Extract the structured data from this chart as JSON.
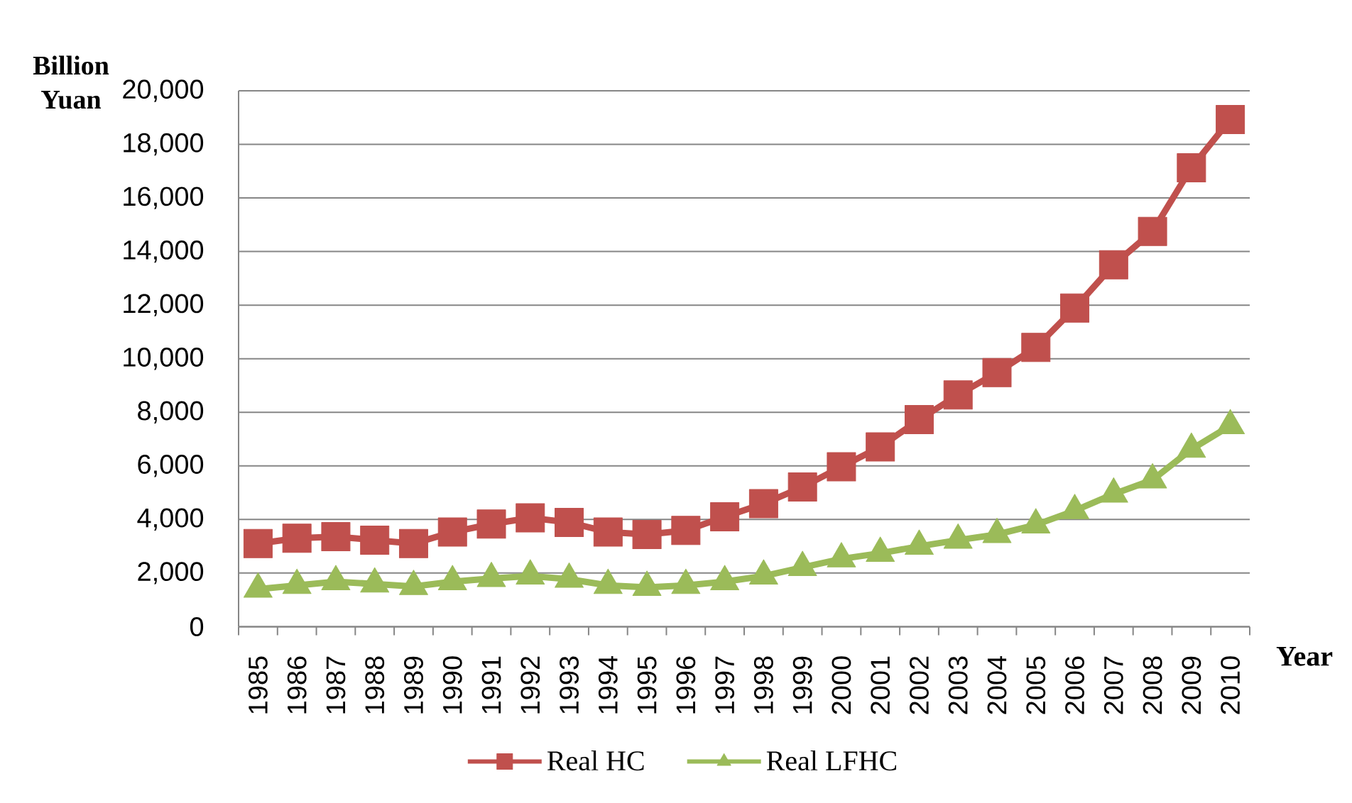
{
  "chart_data": {
    "type": "line",
    "categories": [
      "1985",
      "1986",
      "1987",
      "1988",
      "1989",
      "1990",
      "1991",
      "1992",
      "1993",
      "1994",
      "1995",
      "1996",
      "1997",
      "1998",
      "1999",
      "2000",
      "2001",
      "2002",
      "2003",
      "2004",
      "2005",
      "2006",
      "2007",
      "2008",
      "2009",
      "2010"
    ],
    "series": [
      {
        "name": "Real HC",
        "color": "#c0504d",
        "marker": "square",
        "values": [
          3100,
          3300,
          3360,
          3230,
          3100,
          3530,
          3830,
          4060,
          3890,
          3530,
          3440,
          3590,
          4100,
          4590,
          5210,
          5970,
          6710,
          7730,
          8650,
          9480,
          10420,
          11890,
          13510,
          14750,
          17130,
          18930
        ]
      },
      {
        "name": "Real LFHC",
        "color": "#9bbb59",
        "marker": "triangle",
        "values": [
          1400,
          1540,
          1680,
          1590,
          1500,
          1680,
          1800,
          1890,
          1770,
          1540,
          1470,
          1540,
          1680,
          1890,
          2210,
          2530,
          2740,
          3000,
          3230,
          3440,
          3800,
          4330,
          4950,
          5480,
          6620,
          7500
        ]
      }
    ],
    "xlabel": "Year",
    "ylabel": "Billion Yuan",
    "ylim": [
      0,
      20000
    ],
    "yticks": [
      0,
      {
        "value": 2000,
        "label": "2,000"
      },
      {
        "value": 4000,
        "label": "4,000"
      },
      {
        "value": 6000,
        "label": "6,000"
      },
      {
        "value": 8000,
        "label": "8,000"
      },
      {
        "value": 10000,
        "label": "10,000"
      },
      {
        "value": 12000,
        "label": "12,000"
      },
      {
        "value": 14000,
        "label": "14,000"
      },
      {
        "value": 16000,
        "label": "16,000"
      },
      {
        "value": 18000,
        "label": "18,000"
      },
      {
        "value": 20000,
        "label": "20,000"
      }
    ],
    "grid": "y",
    "legend": "bottom",
    "line_style": "solid"
  }
}
